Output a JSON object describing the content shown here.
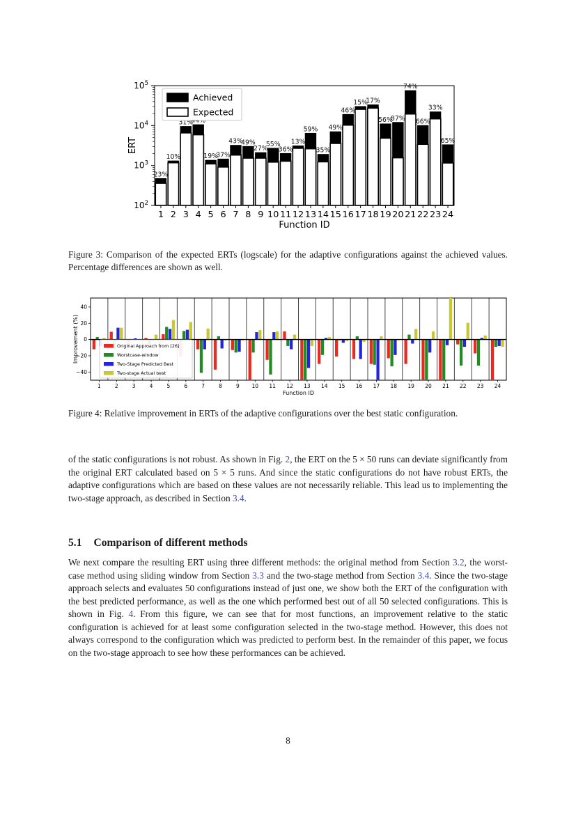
{
  "page": {
    "number": "8"
  },
  "colors": {
    "link": "#3d4db7",
    "text": "#1c1c1c",
    "fig4_red": "#e62b22",
    "fig4_green": "#228B22",
    "fig4_blue": "#2424dd",
    "fig4_yellow": "#c8c832"
  },
  "section": {
    "number": "5.1",
    "title": "Comparison of different methods"
  },
  "captions": {
    "figure3": "Figure 3: Comparison of the expected ERTs (logscale) for the adaptive configurations against the achieved values. Percentage differences are shown as well.",
    "figure4": "Figure 4: Relative improvement in ERTs of the adaptive configurations over the best static configuration."
  },
  "paragraphs": {
    "p1": [
      {
        "t": "of the static configurations is not robust.  As shown in Fig. "
      },
      {
        "t": "2",
        "link": true
      },
      {
        "t": ", the ERT on the 5 × 50 runs can deviate significantly from the original ERT calculated based on 5 × 5 runs. And since the static configurations do not have robust ERTs, the adaptive configurations which are based on these values are not necessarily reliable.  This lead us to implementing the two-stage approach, as described in Section "
      },
      {
        "t": "3.4",
        "link": true
      },
      {
        "t": "."
      }
    ],
    "p2": [
      {
        "t": "We next compare the resulting ERT using three different methods:  the original method from Section "
      },
      {
        "t": "3.2",
        "link": true
      },
      {
        "t": ", the worst-case method using sliding window from Section "
      },
      {
        "t": "3.3",
        "link": true
      },
      {
        "t": " and the two-stage method from Section "
      },
      {
        "t": "3.4",
        "link": true
      },
      {
        "t": ". Since the two-stage approach selects and evaluates 50 configurations instead of just one, we show both the ERT of the configuration with the best predicted performance, as well as the one which performed best out of all 50 selected configurations.  This is shown in Fig. "
      },
      {
        "t": "4",
        "link": true
      },
      {
        "t": ". From this figure, we can see that for most functions, an improvement relative to the static configuration is achieved for at least some configuration selected in the two-stage method.  However, this does not always correspond to the configuration which was predicted to perform best.  In the remainder of this paper, we focus on the two-stage approach to see how these performances can be achieved."
      }
    ]
  },
  "chart_data": [
    {
      "type": "bar",
      "name": "figure3",
      "title": "",
      "xlabel": "Function ID",
      "ylabel": "ERT",
      "yscale": "log",
      "ylim": [
        100,
        100000
      ],
      "ytick_exponents": [
        2,
        3,
        4,
        5
      ],
      "legend_position": "upper left",
      "overlayed_bars": true,
      "categories": [
        1,
        2,
        3,
        4,
        5,
        6,
        7,
        8,
        9,
        10,
        11,
        12,
        13,
        14,
        15,
        16,
        17,
        18,
        19,
        20,
        21,
        22,
        23,
        24
      ],
      "series": [
        {
          "name": "Achieved",
          "fill": "#000000",
          "stroke": "#000000",
          "values": [
            470,
            1300,
            9500,
            10500,
            1350,
            1450,
            3200,
            3000,
            2100,
            2700,
            2000,
            3100,
            6400,
            1900,
            7000,
            19000,
            30000,
            33000,
            11000,
            12000,
            75000,
            10000,
            22000,
            3300
          ]
        },
        {
          "name": "Expected",
          "fill": "#ffffff",
          "stroke": "#000000",
          "values": [
            360,
            1170,
            6550,
            5880,
            1095,
            915,
            1825,
            1530,
            1530,
            1215,
            1280,
            2700,
            2625,
            1235,
            3570,
            10260,
            25500,
            27390,
            4840,
            1560,
            19500,
            3400,
            14740,
            1155
          ]
        }
      ],
      "bar_labels": [
        "23%",
        "10%",
        "31%",
        "44%",
        "19%",
        "37%",
        "43%",
        "49%",
        "27%",
        "55%",
        "36%",
        "13%",
        "59%",
        "35%",
        "49%",
        "46%",
        "15%",
        "17%",
        "56%",
        "87%",
        "74%",
        "66%",
        "33%",
        "65%"
      ]
    },
    {
      "type": "bar",
      "name": "figure4",
      "title": "",
      "xlabel": "Function ID",
      "ylabel": "Improvement (%)",
      "ylim": [
        -50,
        51
      ],
      "yticks": [
        -40,
        -20,
        0,
        20,
        40
      ],
      "legend_position": "lower left",
      "grouped": true,
      "categories": [
        1,
        2,
        3,
        4,
        5,
        6,
        7,
        8,
        9,
        10,
        11,
        12,
        13,
        14,
        15,
        16,
        17,
        18,
        19,
        20,
        21,
        22,
        23,
        24
      ],
      "series": [
        {
          "name": "Original Approach from [26]",
          "fill": "#e62b22",
          "values": [
            -12,
            9.5,
            -7,
            2,
            6.5,
            -21,
            -12,
            -37,
            -13,
            -55,
            -25,
            10,
            -55,
            -30,
            -21,
            -24,
            -30,
            -23,
            -30,
            -55,
            -55,
            -6,
            -17,
            -55
          ]
        },
        {
          "name": "Worstcase-window",
          "fill": "#228B22",
          "values": [
            3,
            -12,
            0.5,
            -6,
            15.5,
            10.5,
            -41,
            4,
            -16,
            -16,
            -43,
            -8,
            -55,
            -19,
            -1,
            4,
            -31,
            -33,
            6,
            -55,
            -55,
            -32,
            -32,
            -9
          ]
        },
        {
          "name": "Two-Stage Predicted Best",
          "fill": "#2424dd",
          "values": [
            -8,
            14.5,
            1.5,
            0.5,
            13,
            12,
            -12,
            -11,
            -15,
            9,
            9,
            -12,
            -35,
            2,
            -4,
            -24,
            -55,
            -19,
            -5,
            -16,
            -7,
            -9,
            2,
            -8
          ]
        },
        {
          "name": "Two-stage Actual best",
          "fill": "#c8c832",
          "values": [
            2,
            14.5,
            0.5,
            6,
            24,
            21.5,
            13.5,
            -1,
            -1,
            11.5,
            10,
            6,
            -8,
            3,
            -2,
            -3,
            4,
            -1,
            13,
            10,
            55,
            20.5,
            5,
            -9
          ]
        }
      ]
    }
  ]
}
